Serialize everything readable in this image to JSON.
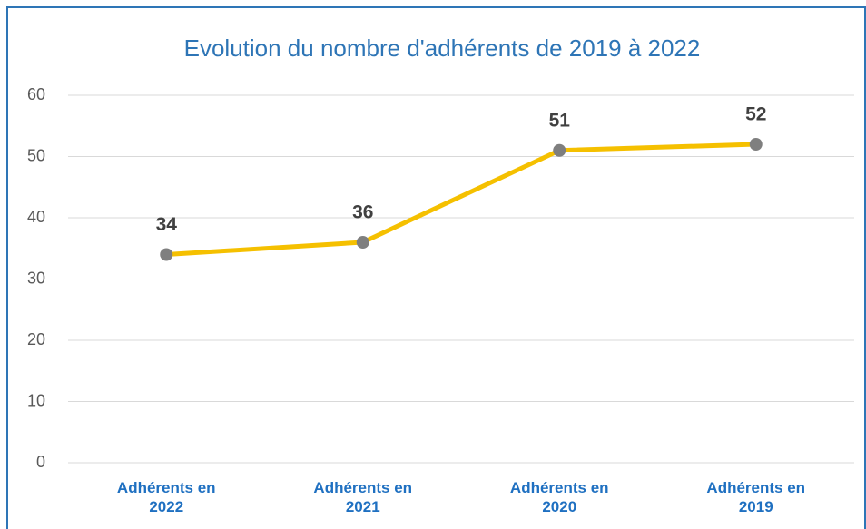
{
  "chart_data": {
    "type": "line",
    "title": "Evolution du nombre d'adhérents de 2019 à 2022",
    "categories": [
      "Adhérents en 2022",
      "Adhérents en 2021",
      "Adhérents en 2020",
      "Adhérents en 2019"
    ],
    "values": [
      34,
      36,
      51,
      52
    ],
    "color": "#f5c000",
    "marker_color": "#7f7f7f",
    "ylim": [
      0,
      60
    ],
    "yticks": [
      0,
      10,
      20,
      30,
      40,
      50,
      60
    ],
    "grid": true
  }
}
